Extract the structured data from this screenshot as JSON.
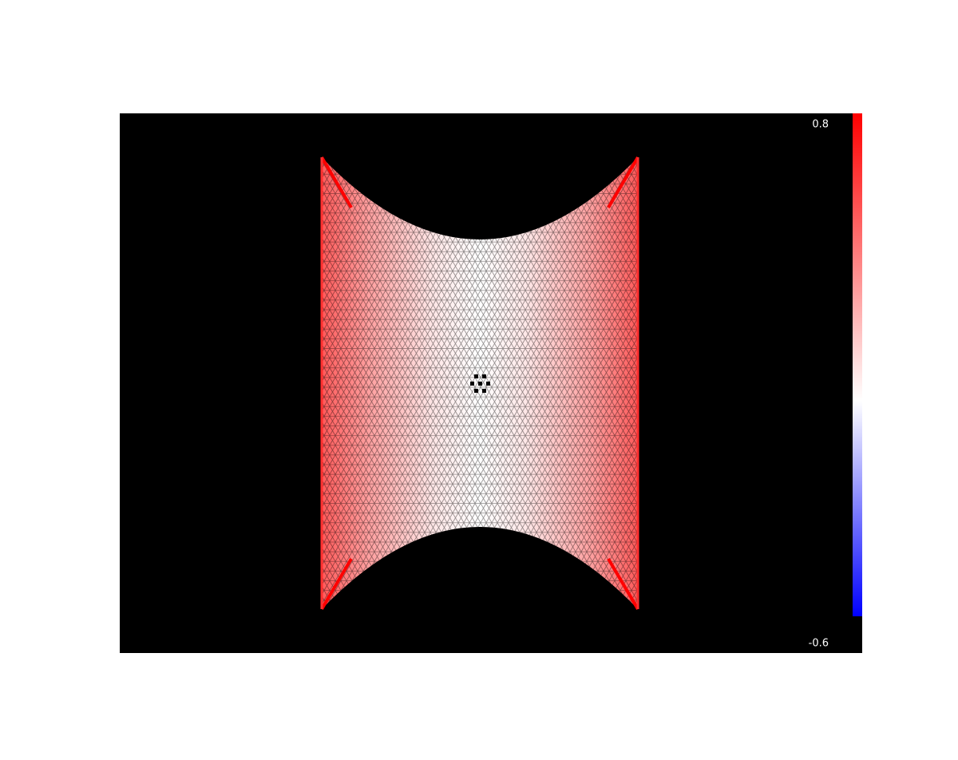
{
  "colorbar": {
    "max": 0.8,
    "min": -0.6,
    "colors": [
      "#0000ff",
      "#ffffff",
      "#ff0000"
    ]
  }
}
